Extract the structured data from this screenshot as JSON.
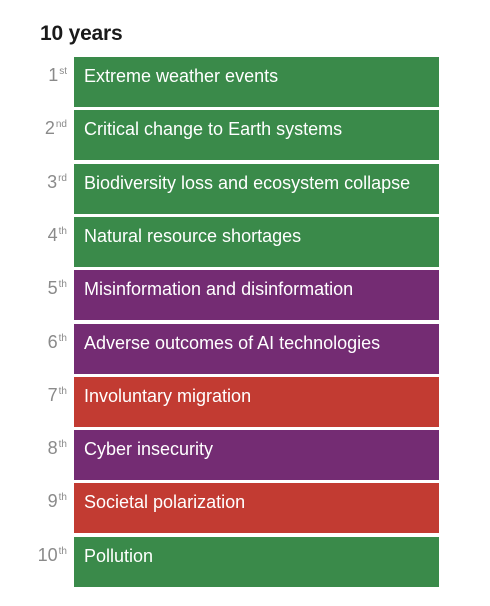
{
  "title": "10 years",
  "colors": {
    "environmental": "#3a8a4a",
    "technological": "#742c73",
    "societal": "#c23b32"
  },
  "items": [
    {
      "rank": "1",
      "suffix": "st",
      "label": "Extreme weather events",
      "category": "environmental"
    },
    {
      "rank": "2",
      "suffix": "nd",
      "label": "Critical change to Earth systems",
      "category": "environmental"
    },
    {
      "rank": "3",
      "suffix": "rd",
      "label": "Biodiversity loss and ecosystem collapse",
      "category": "environmental"
    },
    {
      "rank": "4",
      "suffix": "th",
      "label": "Natural resource shortages",
      "category": "environmental"
    },
    {
      "rank": "5",
      "suffix": "th",
      "label": "Misinformation and disinformation",
      "category": "technological"
    },
    {
      "rank": "6",
      "suffix": "th",
      "label": "Adverse outcomes of AI technologies",
      "category": "technological"
    },
    {
      "rank": "7",
      "suffix": "th",
      "label": "Involuntary migration",
      "category": "societal"
    },
    {
      "rank": "8",
      "suffix": "th",
      "label": "Cyber insecurity",
      "category": "technological"
    },
    {
      "rank": "9",
      "suffix": "th",
      "label": "Societal polarization",
      "category": "societal"
    },
    {
      "rank": "10",
      "suffix": "th",
      "label": "Pollution",
      "category": "environmental"
    }
  ]
}
